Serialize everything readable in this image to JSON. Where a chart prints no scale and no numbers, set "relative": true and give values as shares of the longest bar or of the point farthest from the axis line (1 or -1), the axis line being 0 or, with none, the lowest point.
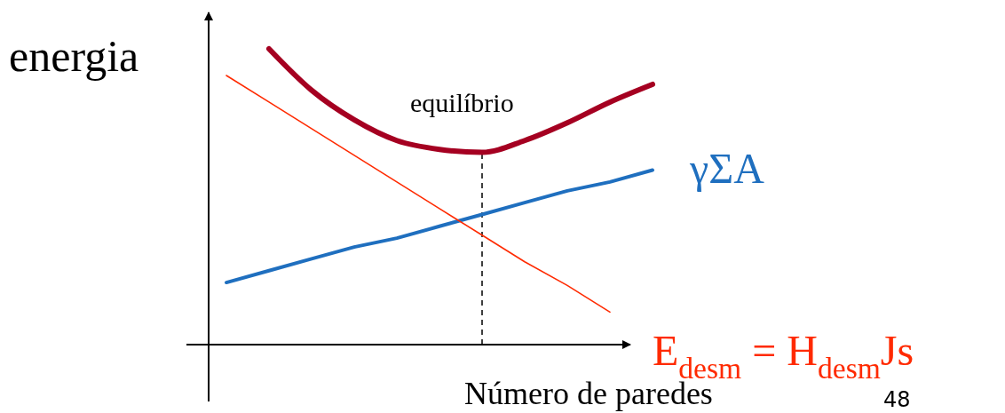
{
  "chart_data": {
    "type": "line",
    "relative": true,
    "ylabel": "energia",
    "xlabel": "Número de paredes",
    "categories": [
      null,
      null,
      null,
      null,
      null,
      null,
      null,
      null,
      null,
      null,
      null
    ],
    "series": [
      {
        "color": "#a50021",
        "values": [
          null,
          1.0,
          0.86,
          0.76,
          0.69,
          0.66,
          0.65,
          0.69,
          0.75,
          0.82,
          0.88
        ]
      },
      {
        "name": "γΣA",
        "color": "#1f6fbf",
        "values": [
          0.21,
          0.25,
          0.29,
          0.33,
          0.36,
          0.4,
          0.44,
          0.48,
          0.52,
          0.55,
          0.59
        ]
      },
      {
        "name": "E$_{desm}$ = H$_{desm}$Js",
        "color": "#ff2a00",
        "values": [
          0.91,
          0.82,
          0.73,
          0.64,
          0.55,
          0.46,
          0.37,
          0.28,
          0.2,
          0.11,
          null
        ]
      }
    ],
    "annotations": [
      "equilíbrio",
      "48"
    ],
    "marker": "none",
    "line_style": "solid"
  }
}
